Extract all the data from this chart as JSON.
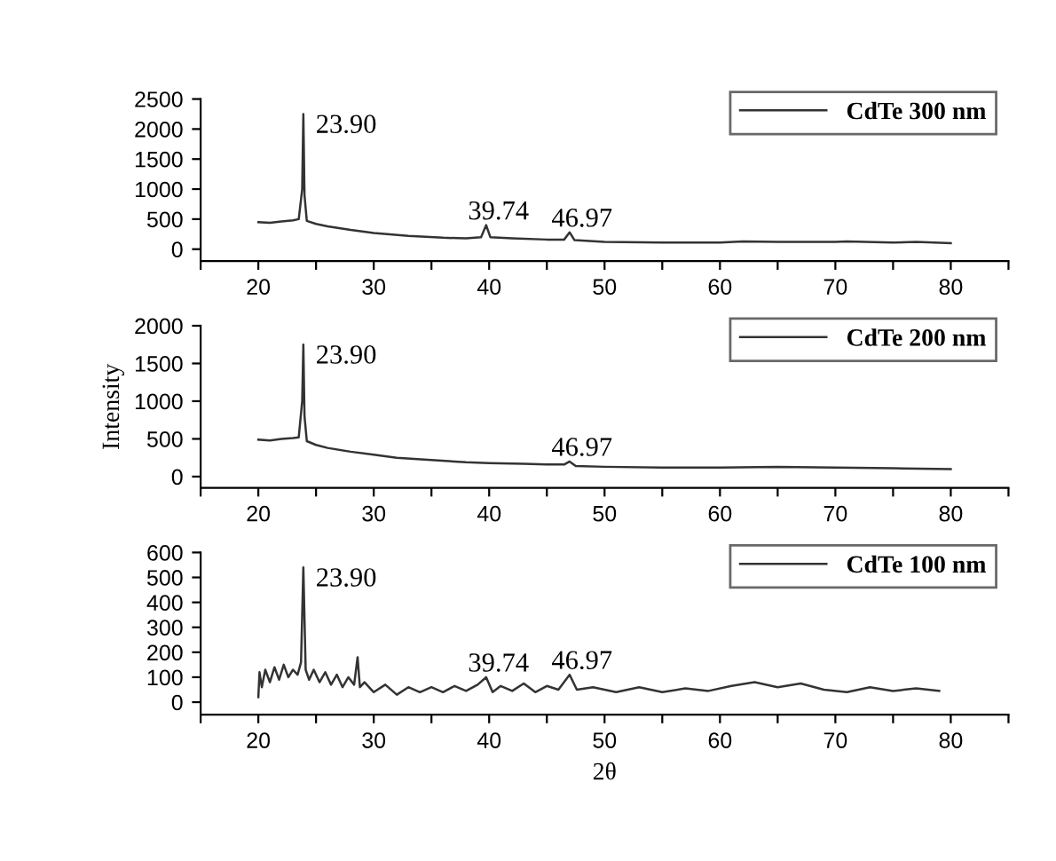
{
  "chart_data": [
    {
      "type": "line",
      "xlim": [
        15,
        85
      ],
      "ylim": [
        -200,
        2500
      ],
      "yticks": [
        0,
        500,
        1000,
        1500,
        2000,
        2500
      ],
      "xticks": [
        {
          "value": 15,
          "label": null
        },
        20,
        {
          "value": 25,
          "label": null
        },
        30,
        {
          "value": 35,
          "label": null
        },
        40,
        {
          "value": 45,
          "label": null
        },
        50,
        {
          "value": 55,
          "label": null
        },
        60,
        {
          "value": 65,
          "label": null
        },
        70,
        {
          "value": 75,
          "label": null
        },
        80,
        {
          "value": 85,
          "label": null
        }
      ],
      "legend": "top right",
      "grid": false,
      "marker": "none",
      "line_style": "solid",
      "series": [
        {
          "name": "CdTe 300 nm",
          "color": "#333333",
          "x": [
            20,
            21,
            22,
            23,
            23.5,
            23.8,
            23.9,
            24.0,
            24.2,
            25,
            26,
            27,
            28,
            30,
            33,
            36,
            38,
            39.3,
            39.74,
            40.1,
            42,
            45,
            46.5,
            46.97,
            47.4,
            50,
            55,
            60,
            62,
            65,
            70,
            71,
            75,
            77,
            80
          ],
          "values": [
            450,
            440,
            460,
            480,
            500,
            1000,
            2250,
            900,
            470,
            420,
            380,
            350,
            320,
            270,
            220,
            190,
            180,
            200,
            400,
            200,
            180,
            160,
            160,
            280,
            150,
            120,
            110,
            110,
            130,
            120,
            120,
            130,
            110,
            120,
            100
          ]
        }
      ],
      "annotations": [
        {
          "text": "23.90",
          "x": 23.9,
          "y": 2250
        },
        {
          "text": "39.74",
          "x": 39.74,
          "y": 400
        },
        {
          "text": "46.97",
          "x": 46.97,
          "y": 280
        }
      ]
    },
    {
      "type": "line",
      "xlim": [
        15,
        85
      ],
      "ylim": [
        -150,
        2000
      ],
      "yticks": [
        0,
        500,
        1000,
        1500,
        2000
      ],
      "xticks": [
        {
          "value": 15,
          "label": null
        },
        20,
        {
          "value": 25,
          "label": null
        },
        30,
        {
          "value": 35,
          "label": null
        },
        40,
        {
          "value": 45,
          "label": null
        },
        50,
        {
          "value": 55,
          "label": null
        },
        60,
        {
          "value": 65,
          "label": null
        },
        70,
        {
          "value": 75,
          "label": null
        },
        80,
        {
          "value": 85,
          "label": null
        }
      ],
      "ylabel": "Intensity",
      "legend": "top right",
      "grid": false,
      "marker": "none",
      "line_style": "solid",
      "series": [
        {
          "name": "CdTe 200 nm",
          "color": "#333333",
          "x": [
            20,
            21,
            22,
            23,
            23.5,
            23.8,
            23.9,
            24.0,
            24.2,
            25,
            26,
            28,
            30,
            32,
            35,
            38,
            40,
            43,
            45,
            46.5,
            46.97,
            47.5,
            50,
            55,
            60,
            65,
            70,
            75,
            80
          ],
          "values": [
            490,
            480,
            500,
            510,
            520,
            1000,
            1750,
            800,
            470,
            420,
            380,
            330,
            290,
            250,
            220,
            190,
            180,
            170,
            160,
            160,
            200,
            140,
            130,
            120,
            120,
            130,
            120,
            110,
            100
          ]
        }
      ],
      "annotations": [
        {
          "text": "23.90",
          "x": 23.9,
          "y": 1750
        },
        {
          "text": "46.97",
          "x": 46.97,
          "y": 200
        }
      ]
    },
    {
      "type": "line",
      "xlim": [
        15,
        85
      ],
      "ylim": [
        -50,
        600
      ],
      "yticks": [
        0,
        100,
        200,
        300,
        400,
        500,
        600
      ],
      "xticks": [
        {
          "value": 15,
          "label": null
        },
        20,
        {
          "value": 25,
          "label": null
        },
        30,
        {
          "value": 35,
          "label": null
        },
        40,
        {
          "value": 45,
          "label": null
        },
        50,
        {
          "value": 55,
          "label": null
        },
        60,
        {
          "value": 65,
          "label": null
        },
        70,
        {
          "value": 75,
          "label": null
        },
        80,
        {
          "value": 85,
          "label": null
        }
      ],
      "xlabel": "2θ",
      "legend": "top right",
      "grid": false,
      "marker": "none",
      "line_style": "solid",
      "series": [
        {
          "name": "CdTe 100 nm",
          "color": "#333333",
          "x": [
            20,
            20.1,
            20.3,
            20.6,
            21,
            21.4,
            21.8,
            22.2,
            22.6,
            23,
            23.4,
            23.7,
            23.9,
            24.1,
            24.4,
            24.8,
            25.3,
            25.8,
            26.3,
            26.8,
            27.3,
            27.8,
            28.3,
            28.6,
            28.8,
            29.2,
            30,
            31,
            32,
            33,
            34,
            35,
            36,
            37,
            38,
            39,
            39.74,
            40.3,
            41,
            42,
            43,
            44,
            45,
            46,
            46.97,
            47.6,
            49,
            51,
            53,
            55,
            57,
            59,
            61,
            63,
            65,
            67,
            69,
            71,
            73,
            75,
            77,
            79
          ],
          "values": [
            20,
            120,
            60,
            130,
            80,
            140,
            90,
            150,
            100,
            130,
            110,
            160,
            540,
            130,
            90,
            130,
            80,
            120,
            70,
            110,
            60,
            100,
            70,
            180,
            60,
            80,
            40,
            70,
            30,
            60,
            40,
            60,
            40,
            65,
            45,
            70,
            100,
            40,
            65,
            45,
            75,
            40,
            65,
            50,
            110,
            50,
            60,
            40,
            60,
            40,
            55,
            45,
            65,
            80,
            60,
            75,
            50,
            40,
            60,
            45,
            55,
            45
          ]
        }
      ],
      "annotations": [
        {
          "text": "23.90",
          "x": 23.9,
          "y": 540
        },
        {
          "text": "39.74",
          "x": 39.74,
          "y": 100
        },
        {
          "text": "46.97",
          "x": 46.97,
          "y": 110
        }
      ]
    }
  ]
}
